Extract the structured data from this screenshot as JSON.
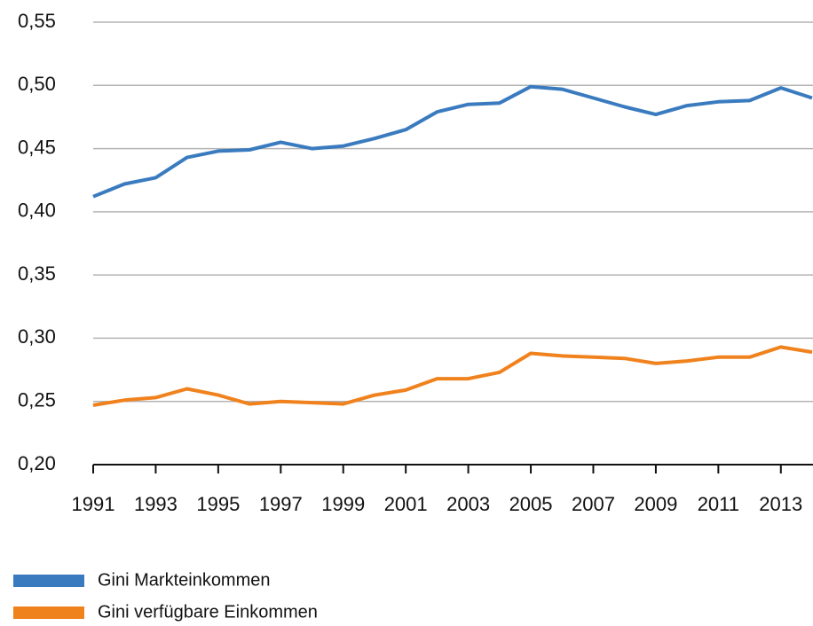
{
  "chart_data": {
    "type": "line",
    "x": [
      1991,
      1992,
      1993,
      1994,
      1995,
      1996,
      1997,
      1998,
      1999,
      2000,
      2001,
      2002,
      2003,
      2004,
      2005,
      2006,
      2007,
      2008,
      2009,
      2010,
      2011,
      2012,
      2013,
      2014
    ],
    "series": [
      {
        "name": "Gini Markteinkommen",
        "color": "#3a7bbf",
        "values": [
          0.412,
          0.422,
          0.427,
          0.443,
          0.448,
          0.449,
          0.455,
          0.45,
          0.452,
          0.458,
          0.465,
          0.479,
          0.485,
          0.486,
          0.499,
          0.497,
          0.49,
          0.483,
          0.477,
          0.484,
          0.487,
          0.488,
          0.498,
          0.49
        ]
      },
      {
        "name": "Gini verfügbare Einkommen",
        "color": "#f0821e",
        "values": [
          0.247,
          0.251,
          0.253,
          0.26,
          0.255,
          0.248,
          0.25,
          0.249,
          0.248,
          0.255,
          0.259,
          0.268,
          0.268,
          0.273,
          0.288,
          0.286,
          0.285,
          0.284,
          0.28,
          0.282,
          0.285,
          0.285,
          0.293,
          0.289
        ]
      }
    ],
    "xlim": [
      1991,
      2014
    ],
    "xticks": [
      1991,
      1993,
      1995,
      1997,
      1999,
      2001,
      2003,
      2005,
      2007,
      2009,
      2011,
      2013
    ],
    "ylim": [
      0.2,
      0.55
    ],
    "yticks": [
      {
        "value": 0.2,
        "label": "0,20"
      },
      {
        "value": 0.25,
        "label": "0,25"
      },
      {
        "value": 0.3,
        "label": "0,30"
      },
      {
        "value": 0.35,
        "label": "0,35"
      },
      {
        "value": 0.4,
        "label": "0,40"
      },
      {
        "value": 0.45,
        "label": "0,45"
      },
      {
        "value": 0.5,
        "label": "0,50"
      },
      {
        "value": 0.55,
        "label": "0,55"
      }
    ],
    "grid": true,
    "legend": "bottom-left"
  }
}
